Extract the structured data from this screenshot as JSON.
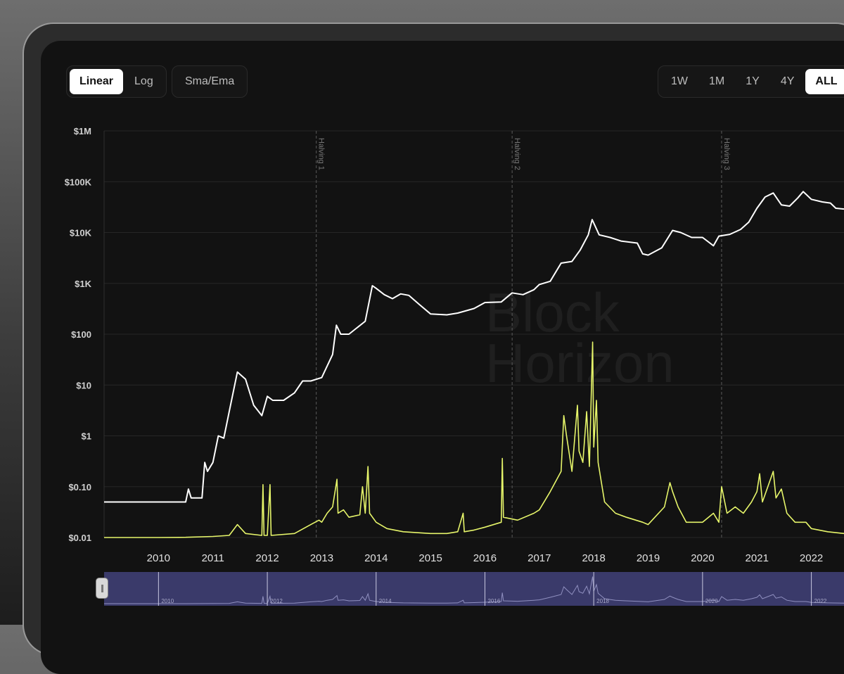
{
  "toolbar": {
    "scale_buttons": [
      {
        "label": "Linear",
        "active": true
      },
      {
        "label": "Log",
        "active": false
      }
    ],
    "sma_label": "Sma/Ema",
    "range_buttons": [
      {
        "label": "1W",
        "active": false
      },
      {
        "label": "1M",
        "active": false
      },
      {
        "label": "1Y",
        "active": false
      },
      {
        "label": "4Y",
        "active": false
      },
      {
        "label": "ALL",
        "active": true
      }
    ]
  },
  "watermark": [
    "Block",
    "Horizon"
  ],
  "colors": {
    "price": "#ffffff",
    "volume": "#e6f56a",
    "navigator_bg": "#3a3a6a",
    "grid": "#262626"
  },
  "chart_data": {
    "type": "line",
    "y_scale": "log",
    "ylim": [
      0.01,
      1000000
    ],
    "y_ticks": [
      {
        "value": 1000000,
        "label": "$1M"
      },
      {
        "value": 100000,
        "label": "$100K"
      },
      {
        "value": 10000,
        "label": "$10K"
      },
      {
        "value": 1000,
        "label": "$1K"
      },
      {
        "value": 100,
        "label": "$100"
      },
      {
        "value": 10,
        "label": "$10"
      },
      {
        "value": 1,
        "label": "$1"
      },
      {
        "value": 0.1,
        "label": "$0.10"
      },
      {
        "value": 0.01,
        "label": "$0.01"
      }
    ],
    "xlim": [
      2009.0,
      2022.6
    ],
    "x_ticks": [
      2010,
      2011,
      2012,
      2013,
      2014,
      2015,
      2016,
      2017,
      2018,
      2019,
      2020,
      2021,
      2022
    ],
    "halvings": [
      {
        "x": 2012.9,
        "label": "Halving 1"
      },
      {
        "x": 2016.5,
        "label": "Halving 2"
      },
      {
        "x": 2020.35,
        "label": "Halving 3"
      }
    ],
    "series": [
      {
        "points": [
          [
            2009.0,
            0.05
          ],
          [
            2010.5,
            0.05
          ],
          [
            2010.55,
            0.09
          ],
          [
            2010.6,
            0.06
          ],
          [
            2010.8,
            0.06
          ],
          [
            2010.85,
            0.3
          ],
          [
            2010.9,
            0.2
          ],
          [
            2011.0,
            0.3
          ],
          [
            2011.1,
            1.0
          ],
          [
            2011.2,
            0.9
          ],
          [
            2011.3,
            3
          ],
          [
            2011.45,
            18
          ],
          [
            2011.6,
            13
          ],
          [
            2011.75,
            4
          ],
          [
            2011.9,
            2.5
          ],
          [
            2012.0,
            6
          ],
          [
            2012.1,
            5
          ],
          [
            2012.3,
            5
          ],
          [
            2012.5,
            7
          ],
          [
            2012.65,
            12
          ],
          [
            2012.8,
            12
          ],
          [
            2013.0,
            14
          ],
          [
            2013.2,
            40
          ],
          [
            2013.27,
            150
          ],
          [
            2013.35,
            100
          ],
          [
            2013.5,
            100
          ],
          [
            2013.8,
            180
          ],
          [
            2013.93,
            900
          ],
          [
            2014.0,
            800
          ],
          [
            2014.15,
            600
          ],
          [
            2014.3,
            500
          ],
          [
            2014.45,
            620
          ],
          [
            2014.6,
            580
          ],
          [
            2014.8,
            380
          ],
          [
            2015.0,
            250
          ],
          [
            2015.3,
            240
          ],
          [
            2015.5,
            260
          ],
          [
            2015.8,
            320
          ],
          [
            2016.0,
            420
          ],
          [
            2016.3,
            430
          ],
          [
            2016.5,
            650
          ],
          [
            2016.7,
            600
          ],
          [
            2016.9,
            750
          ],
          [
            2017.0,
            950
          ],
          [
            2017.2,
            1100
          ],
          [
            2017.4,
            2500
          ],
          [
            2017.6,
            2700
          ],
          [
            2017.75,
            4500
          ],
          [
            2017.9,
            9000
          ],
          [
            2017.97,
            18000
          ],
          [
            2018.1,
            9000
          ],
          [
            2018.3,
            8000
          ],
          [
            2018.5,
            6800
          ],
          [
            2018.8,
            6200
          ],
          [
            2018.9,
            3800
          ],
          [
            2019.0,
            3600
          ],
          [
            2019.25,
            5000
          ],
          [
            2019.45,
            11000
          ],
          [
            2019.6,
            10000
          ],
          [
            2019.8,
            8000
          ],
          [
            2020.0,
            8000
          ],
          [
            2020.2,
            5500
          ],
          [
            2020.3,
            8500
          ],
          [
            2020.5,
            9200
          ],
          [
            2020.7,
            11500
          ],
          [
            2020.85,
            16000
          ],
          [
            2021.0,
            30000
          ],
          [
            2021.15,
            50000
          ],
          [
            2021.3,
            60000
          ],
          [
            2021.45,
            35000
          ],
          [
            2021.6,
            33000
          ],
          [
            2021.75,
            48000
          ],
          [
            2021.85,
            64000
          ],
          [
            2022.0,
            45000
          ],
          [
            2022.2,
            40000
          ],
          [
            2022.35,
            38000
          ],
          [
            2022.45,
            30000
          ],
          [
            2022.6,
            29000
          ]
        ]
      },
      {
        "points": [
          [
            2009.0,
            0.01
          ],
          [
            2010.0,
            0.01
          ],
          [
            2010.5,
            0.0101
          ],
          [
            2011.0,
            0.0105
          ],
          [
            2011.3,
            0.011
          ],
          [
            2011.45,
            0.018
          ],
          [
            2011.6,
            0.012
          ],
          [
            2011.9,
            0.011
          ],
          [
            2011.92,
            0.11
          ],
          [
            2011.94,
            0.011
          ],
          [
            2012.0,
            0.011
          ],
          [
            2012.05,
            0.11
          ],
          [
            2012.07,
            0.011
          ],
          [
            2012.5,
            0.012
          ],
          [
            2012.8,
            0.018
          ],
          [
            2012.95,
            0.022
          ],
          [
            2013.0,
            0.02
          ],
          [
            2013.1,
            0.03
          ],
          [
            2013.2,
            0.04
          ],
          [
            2013.28,
            0.14
          ],
          [
            2013.3,
            0.03
          ],
          [
            2013.4,
            0.035
          ],
          [
            2013.5,
            0.025
          ],
          [
            2013.7,
            0.028
          ],
          [
            2013.75,
            0.1
          ],
          [
            2013.8,
            0.03
          ],
          [
            2013.85,
            0.25
          ],
          [
            2013.88,
            0.03
          ],
          [
            2014.0,
            0.02
          ],
          [
            2014.2,
            0.015
          ],
          [
            2014.5,
            0.013
          ],
          [
            2015.0,
            0.012
          ],
          [
            2015.3,
            0.012
          ],
          [
            2015.5,
            0.013
          ],
          [
            2015.6,
            0.03
          ],
          [
            2015.62,
            0.013
          ],
          [
            2015.8,
            0.014
          ],
          [
            2016.0,
            0.016
          ],
          [
            2016.3,
            0.02
          ],
          [
            2016.32,
            0.36
          ],
          [
            2016.34,
            0.025
          ],
          [
            2016.6,
            0.022
          ],
          [
            2016.9,
            0.03
          ],
          [
            2017.0,
            0.035
          ],
          [
            2017.2,
            0.08
          ],
          [
            2017.4,
            0.2
          ],
          [
            2017.45,
            2.5
          ],
          [
            2017.5,
            1.0
          ],
          [
            2017.6,
            0.2
          ],
          [
            2017.7,
            4.0
          ],
          [
            2017.73,
            0.5
          ],
          [
            2017.8,
            0.3
          ],
          [
            2017.87,
            3.0
          ],
          [
            2017.92,
            0.25
          ],
          [
            2017.98,
            70
          ],
          [
            2018.0,
            0.6
          ],
          [
            2018.05,
            5
          ],
          [
            2018.08,
            0.3
          ],
          [
            2018.2,
            0.05
          ],
          [
            2018.4,
            0.03
          ],
          [
            2018.6,
            0.025
          ],
          [
            2018.9,
            0.02
          ],
          [
            2019.0,
            0.018
          ],
          [
            2019.3,
            0.04
          ],
          [
            2019.4,
            0.12
          ],
          [
            2019.45,
            0.08
          ],
          [
            2019.55,
            0.04
          ],
          [
            2019.7,
            0.02
          ],
          [
            2020.0,
            0.02
          ],
          [
            2020.2,
            0.03
          ],
          [
            2020.3,
            0.02
          ],
          [
            2020.35,
            0.1
          ],
          [
            2020.45,
            0.03
          ],
          [
            2020.6,
            0.04
          ],
          [
            2020.75,
            0.03
          ],
          [
            2020.9,
            0.05
          ],
          [
            2021.0,
            0.08
          ],
          [
            2021.05,
            0.18
          ],
          [
            2021.1,
            0.05
          ],
          [
            2021.2,
            0.1
          ],
          [
            2021.3,
            0.2
          ],
          [
            2021.35,
            0.06
          ],
          [
            2021.45,
            0.09
          ],
          [
            2021.55,
            0.03
          ],
          [
            2021.7,
            0.02
          ],
          [
            2021.9,
            0.02
          ],
          [
            2022.0,
            0.015
          ],
          [
            2022.3,
            0.013
          ],
          [
            2022.6,
            0.012
          ]
        ]
      }
    ],
    "navigator": {
      "x_ticks": [
        2010,
        2012,
        2014,
        2016,
        2018,
        2020,
        2022
      ]
    }
  }
}
